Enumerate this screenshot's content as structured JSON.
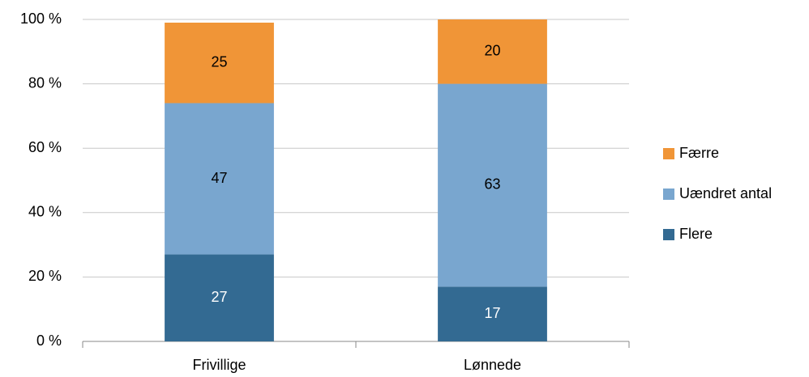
{
  "chart_data": {
    "type": "stacked_bar",
    "categories": [
      "Frivillige",
      "Lønnede"
    ],
    "series": [
      {
        "name": "Flere",
        "color": "#336a92",
        "values": [
          27,
          17
        ]
      },
      {
        "name": "Uændret antal",
        "color": "#79a6cf",
        "values": [
          47,
          63
        ]
      },
      {
        "name": "Færre",
        "color": "#f09537",
        "values": [
          25,
          20
        ]
      }
    ],
    "ylim": [
      0,
      100
    ],
    "yticks": [
      {
        "value": 0,
        "label": "0 %"
      },
      {
        "value": 20,
        "label": "20 %"
      },
      {
        "value": 40,
        "label": "40 %"
      },
      {
        "value": 60,
        "label": "60 %"
      },
      {
        "value": 80,
        "label": "80 %"
      },
      {
        "value": 100,
        "label": "100 %"
      }
    ],
    "grid": true,
    "legend": "right"
  }
}
